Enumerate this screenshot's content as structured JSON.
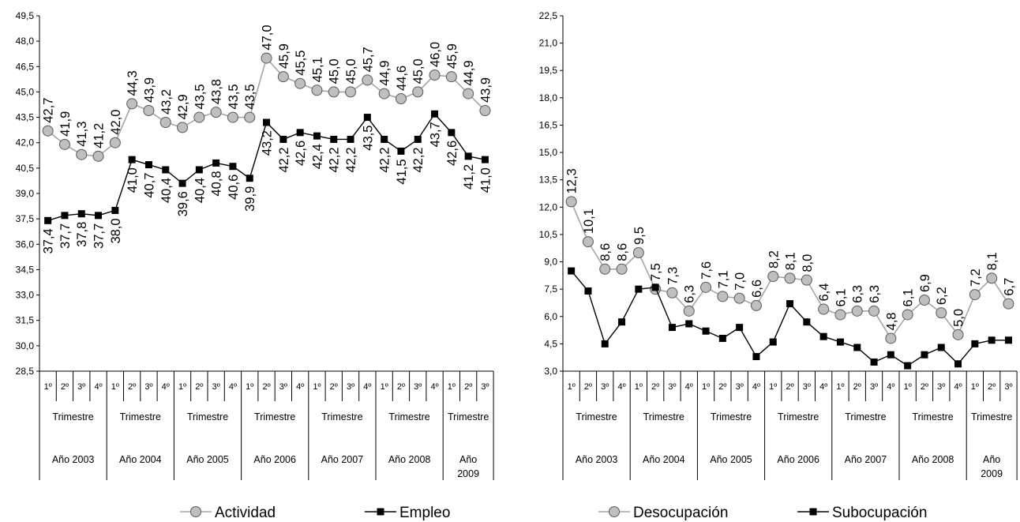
{
  "colors": {
    "actividad": "#a6a6a6",
    "marker_fill_light": "#bfbfbf",
    "dark": "#000000"
  },
  "chart_data": [
    {
      "type": "line",
      "title": "",
      "xlabel": "",
      "ylabel": "",
      "ylim": [
        28.5,
        49.5
      ],
      "yticks": [
        "28,5",
        "30,0",
        "31,5",
        "33,0",
        "34,5",
        "36,0",
        "37,5",
        "39,0",
        "40,5",
        "42,0",
        "43,5",
        "45,0",
        "46,5",
        "48,0",
        "49,5"
      ],
      "x": [
        "1º",
        "2º",
        "3º",
        "4º",
        "1º",
        "2º",
        "3º",
        "4º",
        "1º",
        "2º",
        "3º",
        "4º",
        "1º",
        "2º",
        "3º",
        "4º",
        "1º",
        "2º",
        "3º",
        "4º",
        "1º",
        "2º",
        "3º",
        "4º",
        "1º",
        "2º",
        "3º"
      ],
      "groups": [
        {
          "label": "Trimestre",
          "year": "Año 2003",
          "count": 4
        },
        {
          "label": "Trimestre",
          "year": "Año 2004",
          "count": 4
        },
        {
          "label": "Trimestre",
          "year": "Año 2005",
          "count": 4
        },
        {
          "label": "Trimestre",
          "year": "Año 2006",
          "count": 4
        },
        {
          "label": "Trimestre",
          "year": "Año 2007",
          "count": 4
        },
        {
          "label": "Trimestre",
          "year": "Año 2008",
          "count": 4
        },
        {
          "label": "Trimestre",
          "year": "Año 2009",
          "count": 3
        }
      ],
      "series": [
        {
          "name": "Actividad",
          "marker": "circle",
          "values": [
            42.7,
            41.9,
            41.3,
            41.2,
            42.0,
            44.3,
            43.9,
            43.2,
            42.9,
            43.5,
            43.8,
            43.5,
            43.5,
            47.0,
            45.9,
            45.5,
            45.1,
            45.0,
            45.0,
            45.7,
            44.9,
            44.6,
            45.0,
            46.0,
            45.9,
            44.9,
            43.9
          ],
          "labels": [
            "42,7",
            "41,9",
            "41,3",
            "41,2",
            "42,0",
            "44,3",
            "43,9",
            "43,2",
            "42,9",
            "43,5",
            "43,8",
            "43,5",
            "43,5",
            "47,0",
            "45,9",
            "45,5",
            "45,1",
            "45,0",
            "45,0",
            "45,7",
            "44,9",
            "44,6",
            "45,0",
            "46,0",
            "45,9",
            "44,9",
            "43,9"
          ]
        },
        {
          "name": "Empleo",
          "marker": "square",
          "values": [
            37.4,
            37.7,
            37.8,
            37.7,
            38.0,
            41.0,
            40.7,
            40.4,
            39.6,
            40.4,
            40.8,
            40.6,
            39.9,
            43.2,
            42.2,
            42.6,
            42.4,
            42.2,
            42.2,
            43.5,
            42.2,
            41.5,
            42.2,
            43.7,
            42.6,
            41.2,
            41.0
          ],
          "labels": [
            "37,4",
            "37,7",
            "37,8",
            "37,7",
            "38,0",
            "41,0",
            "40,7",
            "40,4",
            "39,6",
            "40,4",
            "40,8",
            "40,6",
            "39,9",
            "43,2",
            "42,2",
            "42,6",
            "42,4",
            "42,2",
            "42,2",
            "43,5",
            "42,2",
            "41,5",
            "42,2",
            "43,7",
            "42,6",
            "41,2",
            "41,0"
          ]
        }
      ],
      "legend": "bottom"
    },
    {
      "type": "line",
      "title": "",
      "xlabel": "",
      "ylabel": "",
      "ylim": [
        3.0,
        22.5
      ],
      "yticks": [
        "3,0",
        "4,5",
        "6,0",
        "7,5",
        "9,0",
        "10,5",
        "12,0",
        "13,5",
        "15,0",
        "16,5",
        "18,0",
        "19,5",
        "21,0",
        "22,5"
      ],
      "x": [
        "1º",
        "2º",
        "3º",
        "4º",
        "1º",
        "2º",
        "3º",
        "4º",
        "1º",
        "2º",
        "3º",
        "4º",
        "1º",
        "2º",
        "3º",
        "4º",
        "1º",
        "2º",
        "3º",
        "4º",
        "1º",
        "2º",
        "3º",
        "4º",
        "1º",
        "2º",
        "3º"
      ],
      "groups": [
        {
          "label": "Trimestre",
          "year": "Año 2003",
          "count": 4
        },
        {
          "label": "Trimestre",
          "year": "Año 2004",
          "count": 4
        },
        {
          "label": "Trimestre",
          "year": "Año 2005",
          "count": 4
        },
        {
          "label": "Trimestre",
          "year": "Año 2006",
          "count": 4
        },
        {
          "label": "Trimestre",
          "year": "Año 2007",
          "count": 4
        },
        {
          "label": "Trimestre",
          "year": "Año 2008",
          "count": 4
        },
        {
          "label": "Trimestre",
          "year": "Año 2009",
          "count": 3
        }
      ],
      "series": [
        {
          "name": "Desocupación",
          "marker": "circle",
          "values": [
            12.3,
            10.1,
            8.6,
            8.6,
            9.5,
            7.5,
            7.3,
            6.3,
            7.6,
            7.1,
            7.0,
            6.6,
            8.2,
            8.1,
            8.0,
            6.4,
            6.1,
            6.3,
            6.3,
            4.8,
            6.1,
            6.9,
            6.2,
            5.0,
            7.2,
            8.1,
            6.7
          ],
          "labels": [
            "12,3",
            "10,1",
            "8,6",
            "8,6",
            "9,5",
            "7,5",
            "7,3",
            "6,3",
            "7,6",
            "7,1",
            "7,0",
            "6,6",
            "8,2",
            "8,1",
            "8,0",
            "6,4",
            "6,1",
            "6,3",
            "6,3",
            "4,8",
            "6,1",
            "6,9",
            "6,2",
            "5,0",
            "7,2",
            "8,1",
            "6,7"
          ]
        },
        {
          "name": "Subocupación",
          "marker": "square",
          "values": [
            8.5,
            7.4,
            4.5,
            5.7,
            7.5,
            7.6,
            5.4,
            5.6,
            5.2,
            4.8,
            5.4,
            3.8,
            4.6,
            6.7,
            5.7,
            4.9,
            4.6,
            4.3,
            3.5,
            3.9,
            3.3,
            3.9,
            4.3,
            3.4,
            4.5,
            4.7,
            4.7
          ]
        }
      ],
      "legend": "bottom"
    }
  ]
}
